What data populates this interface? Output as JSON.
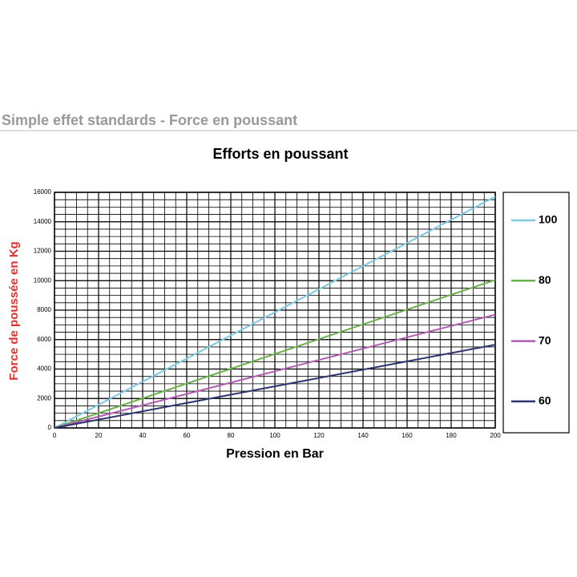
{
  "header": {
    "title": "Simple effet standards - Force en poussant"
  },
  "chart_data": {
    "type": "line",
    "title": "Efforts en poussant",
    "x_label": "Pression en Bar",
    "y_label": "Force de poussée en Kg",
    "x": [
      0,
      200
    ],
    "series": [
      {
        "name": "100",
        "color": "#7ec8e0",
        "values": [
          0,
          15708
        ]
      },
      {
        "name": "80",
        "color": "#6ab04c",
        "values": [
          0,
          10053
        ]
      },
      {
        "name": "70",
        "color": "#b05cb0",
        "values": [
          0,
          7697
        ]
      },
      {
        "name": "60",
        "color": "#2e3470",
        "values": [
          0,
          5655
        ]
      }
    ],
    "xlim": [
      0,
      200
    ],
    "xticks": [
      0,
      20,
      40,
      60,
      80,
      100,
      120,
      140,
      160,
      180,
      200
    ],
    "ylim": [
      0,
      16000
    ],
    "yticks": [
      0,
      2000,
      4000,
      6000,
      8000,
      10000,
      12000,
      14000,
      16000
    ],
    "grid": true,
    "xminor_step": 5,
    "yminor_step": 500,
    "legend": "right"
  }
}
